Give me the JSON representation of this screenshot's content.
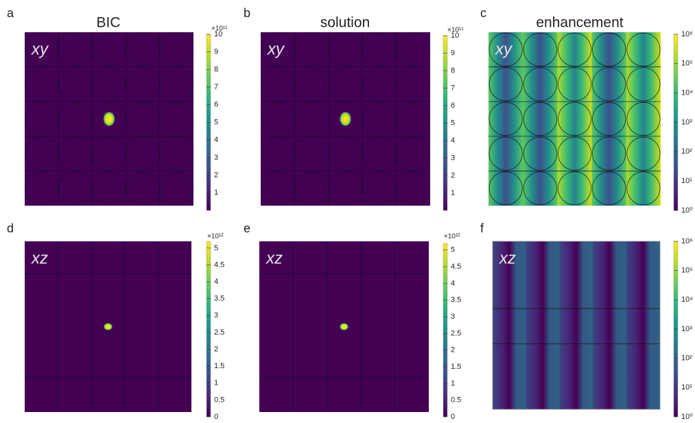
{
  "chart_data": [
    {
      "type": "heatmap",
      "panel": "a",
      "title": "BIC",
      "plane": "xy",
      "colormap": "viridis",
      "log": false,
      "scale_label": "×10¹¹",
      "zlim": [
        0,
        10
      ],
      "zticks": [
        1,
        2,
        3,
        4,
        5,
        6,
        7,
        8,
        9,
        10
      ]
    },
    {
      "type": "heatmap",
      "panel": "b",
      "title": "solution",
      "plane": "xy",
      "colormap": "viridis",
      "log": false,
      "scale_label": "×10¹¹",
      "zlim": [
        0,
        10
      ],
      "zticks": [
        1,
        2,
        3,
        4,
        5,
        6,
        7,
        8,
        9,
        10
      ]
    },
    {
      "type": "heatmap",
      "panel": "c",
      "title": "enhancement",
      "plane": "xy",
      "colormap": "viridis",
      "log": true,
      "zlim": [
        1,
        1000000
      ],
      "zticks": [
        {
          "value": 1,
          "label": "10⁰"
        },
        {
          "value": 10,
          "label": "10¹"
        },
        {
          "value": 100,
          "label": "10²"
        },
        {
          "value": 1000,
          "label": "10³"
        },
        {
          "value": 10000,
          "label": "10⁴"
        },
        {
          "value": 100000,
          "label": "10⁵"
        },
        {
          "value": 1000000,
          "label": "10⁶"
        }
      ]
    },
    {
      "type": "heatmap",
      "panel": "d",
      "plane": "xz",
      "colormap": "viridis",
      "log": false,
      "scale_label": "×10¹²",
      "zlim": [
        0,
        5.2
      ],
      "zticks": [
        0,
        0.5,
        1,
        1.5,
        2,
        2.5,
        3,
        3.5,
        4,
        4.5,
        5
      ]
    },
    {
      "type": "heatmap",
      "panel": "e",
      "plane": "xz",
      "colormap": "viridis",
      "log": false,
      "scale_label": "×10¹²",
      "zlim": [
        0,
        5.2
      ],
      "zticks": [
        0,
        0.5,
        1,
        1.5,
        2,
        2.5,
        3,
        3.5,
        4,
        4.5,
        5
      ]
    },
    {
      "type": "heatmap",
      "panel": "f",
      "plane": "xz",
      "colormap": "viridis",
      "log": true,
      "zlim": [
        1,
        1000000
      ],
      "zticks": [
        {
          "value": 1,
          "label": "10⁰"
        },
        {
          "value": 10,
          "label": "10¹"
        },
        {
          "value": 100,
          "label": "10²"
        },
        {
          "value": 1000,
          "label": "10³"
        },
        {
          "value": 10000,
          "label": "10⁴"
        },
        {
          "value": 100000,
          "label": "10⁵"
        },
        {
          "value": 1000000,
          "label": "10⁶"
        }
      ]
    }
  ]
}
